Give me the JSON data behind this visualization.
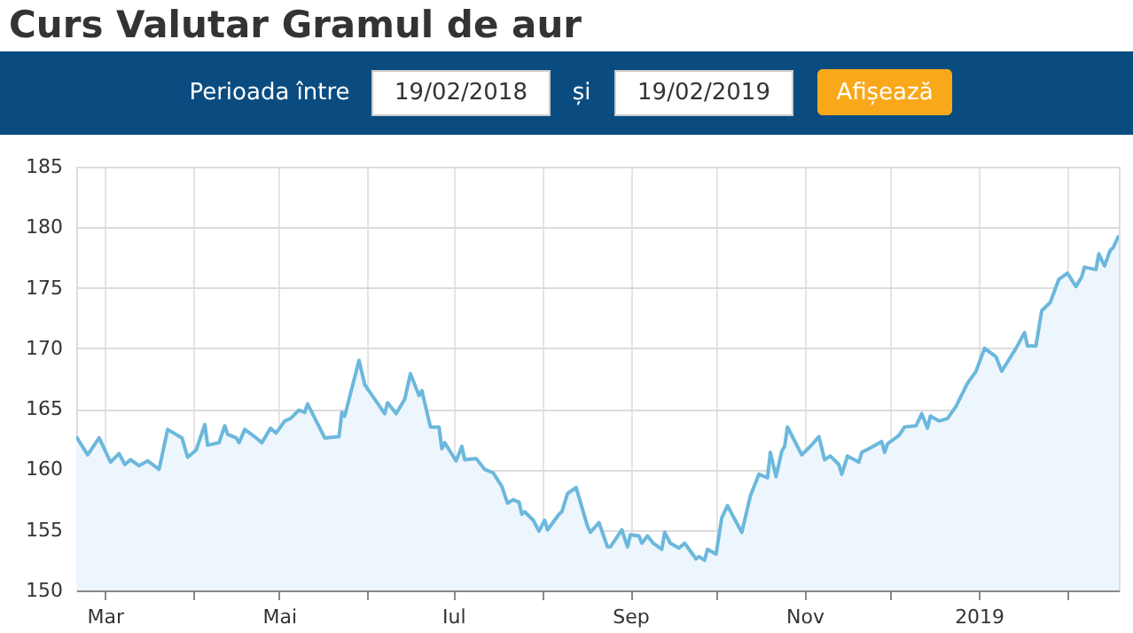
{
  "chart_data": {
    "type": "area",
    "title": "Curs Valutar Gramul de aur",
    "annotations": [
      "Perioada între",
      "19/02/2018",
      "și",
      "19/02/2019",
      "Afișează"
    ],
    "x": [
      "2018-02-19",
      "2018-02-23",
      "2018-02-27",
      "2018-03-03",
      "2018-03-06",
      "2018-03-08",
      "2018-03-10",
      "2018-03-13",
      "2018-03-16",
      "2018-03-20",
      "2018-03-23",
      "2018-03-28",
      "2018-03-30",
      "2018-04-02",
      "2018-04-05",
      "2018-04-06",
      "2018-04-10",
      "2018-04-12",
      "2018-04-13",
      "2018-04-16",
      "2018-04-17",
      "2018-04-19",
      "2018-04-23",
      "2018-04-25",
      "2018-04-28",
      "2018-04-30",
      "2018-05-03",
      "2018-05-05",
      "2018-05-08",
      "2018-05-10",
      "2018-05-11",
      "2018-05-17",
      "2018-05-22",
      "2018-05-23",
      "2018-05-24",
      "2018-05-29",
      "2018-05-31",
      "2018-06-07",
      "2018-06-08",
      "2018-06-11",
      "2018-06-14",
      "2018-06-16",
      "2018-06-19",
      "2018-06-20",
      "2018-06-23",
      "2018-06-26",
      "2018-06-27",
      "2018-06-28",
      "2018-07-02",
      "2018-07-04",
      "2018-07-05",
      "2018-07-09",
      "2018-07-12",
      "2018-07-15",
      "2018-07-18",
      "2018-07-20",
      "2018-07-22",
      "2018-07-24",
      "2018-07-25",
      "2018-07-26",
      "2018-07-29",
      "2018-07-31",
      "2018-08-02",
      "2018-08-03",
      "2018-08-07",
      "2018-08-08",
      "2018-08-10",
      "2018-08-13",
      "2018-08-17",
      "2018-08-18",
      "2018-08-21",
      "2018-08-24",
      "2018-08-25",
      "2018-08-29",
      "2018-08-31",
      "2018-09-01",
      "2018-09-04",
      "2018-09-05",
      "2018-09-07",
      "2018-09-09",
      "2018-09-12",
      "2018-09-13",
      "2018-09-15",
      "2018-09-18",
      "2018-09-20",
      "2018-09-24",
      "2018-09-25",
      "2018-09-27",
      "2018-09-28",
      "2018-10-01",
      "2018-10-03",
      "2018-10-05",
      "2018-10-10",
      "2018-10-13",
      "2018-10-16",
      "2018-10-19",
      "2018-10-20",
      "2018-10-22",
      "2018-10-24",
      "2018-10-25",
      "2018-10-26",
      "2018-10-31",
      "2018-11-03",
      "2018-11-06",
      "2018-11-08",
      "2018-11-10",
      "2018-11-13",
      "2018-11-14",
      "2018-11-16",
      "2018-11-20",
      "2018-11-21",
      "2018-11-25",
      "2018-11-28",
      "2018-11-29",
      "2018-11-30",
      "2018-12-04",
      "2018-12-06",
      "2018-12-10",
      "2018-12-12",
      "2018-12-14",
      "2018-12-15",
      "2018-12-18",
      "2018-12-21",
      "2018-12-24",
      "2018-12-28",
      "2018-12-31",
      "2019-01-03",
      "2019-01-07",
      "2019-01-09",
      "2019-01-14",
      "2019-01-17",
      "2019-01-18",
      "2019-01-21",
      "2019-01-23",
      "2019-01-26",
      "2019-01-29",
      "2019-02-01",
      "2019-02-04",
      "2019-02-06",
      "2019-02-07",
      "2019-02-11",
      "2019-02-12",
      "2019-02-14",
      "2019-02-16",
      "2019-02-17",
      "2019-02-19"
    ],
    "series": [
      {
        "color": "#6cb8dc",
        "values": [
          162.7,
          161.2,
          162.6,
          160.6,
          161.3,
          160.4,
          160.8,
          160.3,
          160.7,
          160.0,
          163.3,
          162.6,
          161.0,
          161.6,
          163.7,
          162.0,
          162.2,
          163.6,
          162.9,
          162.6,
          162.2,
          163.3,
          162.6,
          162.2,
          163.4,
          163.0,
          164.0,
          164.2,
          164.9,
          164.7,
          165.4,
          162.6,
          162.7,
          164.7,
          164.4,
          169.0,
          167.0,
          164.6,
          165.5,
          164.6,
          165.8,
          167.9,
          166.1,
          166.5,
          163.5,
          163.5,
          161.7,
          162.2,
          160.7,
          161.9,
          160.8,
          160.9,
          160.0,
          159.7,
          158.6,
          157.2,
          157.5,
          157.3,
          156.3,
          156.5,
          155.8,
          154.9,
          155.8,
          155.0,
          156.3,
          156.5,
          158.0,
          158.5,
          155.3,
          154.8,
          155.6,
          153.6,
          153.6,
          155.0,
          153.6,
          154.6,
          154.5,
          153.9,
          154.5,
          153.9,
          153.4,
          154.8,
          153.9,
          153.5,
          153.9,
          152.6,
          152.8,
          152.5,
          153.4,
          153.0,
          156.0,
          157.0,
          154.8,
          157.8,
          159.6,
          159.3,
          161.4,
          159.4,
          161.5,
          161.9,
          163.5,
          161.2,
          161.9,
          162.7,
          160.8,
          161.1,
          160.4,
          159.6,
          161.1,
          160.6,
          161.4,
          161.9,
          162.3,
          161.4,
          162.1,
          162.8,
          163.5,
          163.6,
          164.6,
          163.4,
          164.4,
          164.0,
          164.2,
          165.2,
          167.1,
          168.1,
          170.0,
          169.3,
          168.1,
          170.0,
          171.3,
          170.2,
          170.2,
          173.1,
          173.8,
          175.7,
          176.2,
          175.1,
          175.9,
          176.7,
          176.5,
          177.8,
          176.8,
          178.1,
          178.3,
          179.3
        ]
      }
    ],
    "xlim": [
      "2018-02-19",
      "2019-02-19"
    ],
    "xticks": [
      {
        "value": "2018-03-01",
        "label": "Mar"
      },
      {
        "value": "2018-04-01",
        "label": null
      },
      {
        "value": "2018-05-01",
        "label": "Mai"
      },
      {
        "value": "2018-06-01",
        "label": null
      },
      {
        "value": "2018-07-01",
        "label": "Iul"
      },
      {
        "value": "2018-08-01",
        "label": null
      },
      {
        "value": "2018-09-01",
        "label": "Sep"
      },
      {
        "value": "2018-10-01",
        "label": null
      },
      {
        "value": "2018-11-01",
        "label": "Nov"
      },
      {
        "value": "2018-12-01",
        "label": null
      },
      {
        "value": "2019-01-01",
        "label": "2019"
      },
      {
        "value": "2019-02-01",
        "label": null
      }
    ],
    "ylim": [
      150,
      185
    ],
    "yticks": [
      150,
      155,
      160,
      165,
      170,
      175,
      180,
      185
    ],
    "grid": true,
    "marker": "none",
    "line_style": "solid"
  }
}
